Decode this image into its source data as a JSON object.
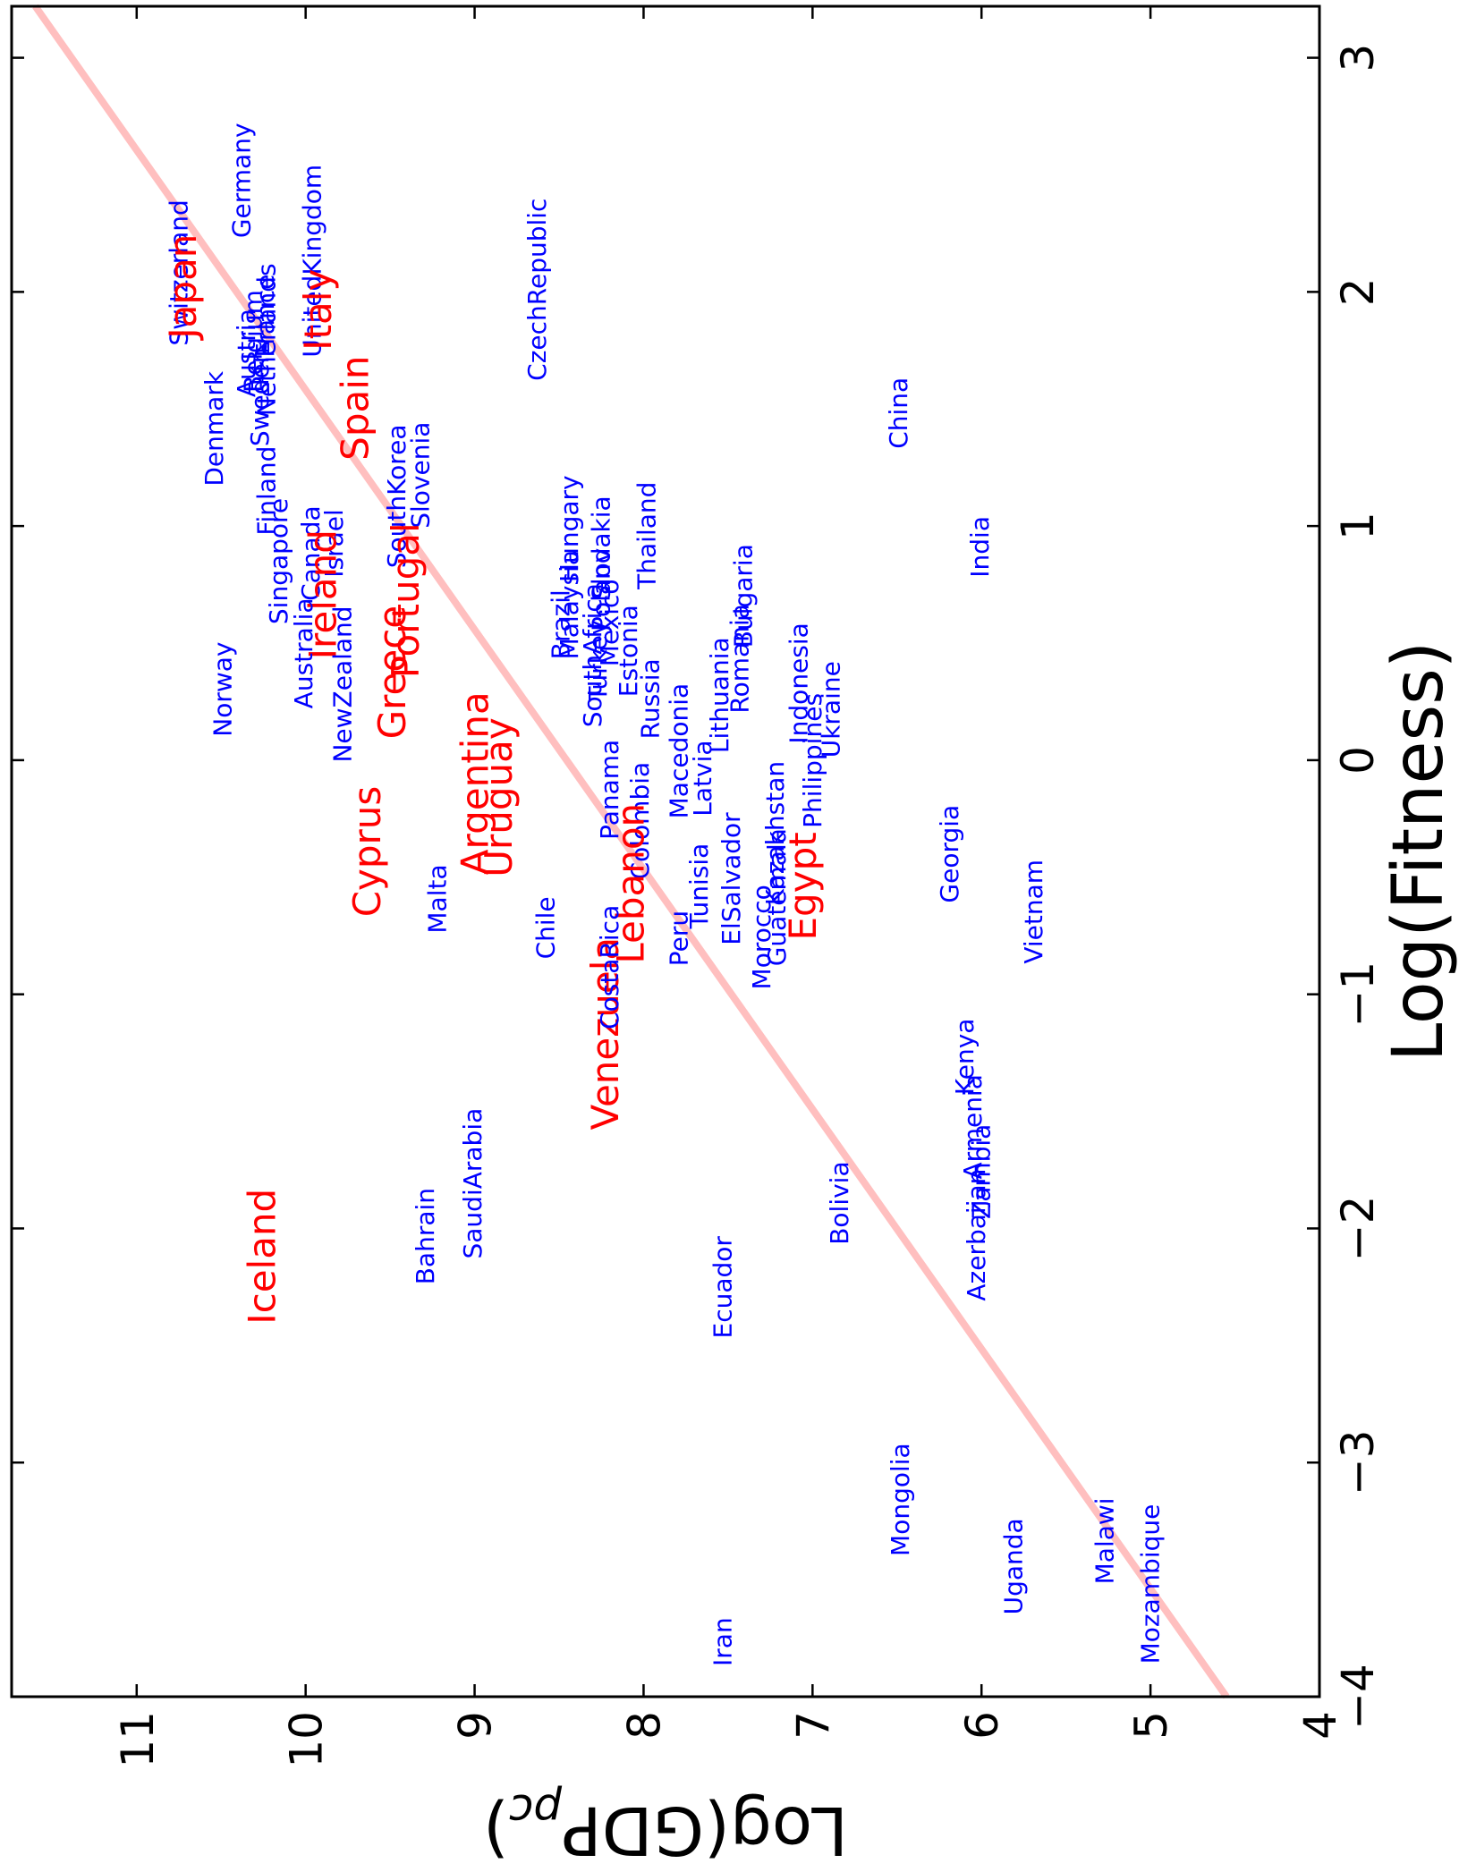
{
  "chart_data": {
    "type": "text-scatter",
    "xlabel": "Log(Fitness)",
    "ylabel": [
      "Log(GDP",
      "pc",
      ")"
    ],
    "xlim": [
      -4,
      3.22
    ],
    "ylim": [
      4,
      11.74
    ],
    "xticks": [
      {
        "value": -4,
        "label": "−4"
      },
      {
        "value": -3,
        "label": "−3"
      },
      {
        "value": -2,
        "label": "−2"
      },
      {
        "value": -1,
        "label": "−1"
      },
      0,
      1,
      2,
      3
    ],
    "yticks": [
      4,
      5,
      6,
      7,
      8,
      9,
      10,
      11
    ],
    "fit": {
      "x": [
        -4,
        3.22
      ],
      "y": [
        4.55,
        11.6
      ],
      "color": "#ffbfbf"
    },
    "points": [
      {
        "label": "Switzerland",
        "x": 1.77,
        "y": 10.7,
        "color": "#0000ff"
      },
      {
        "label": "Japan",
        "x": 1.8,
        "y": 10.65,
        "color": "#ff0000"
      },
      {
        "label": "Germany",
        "x": 2.23,
        "y": 10.33,
        "color": "#0000ff"
      },
      {
        "label": "UnitedKingdom",
        "x": 1.72,
        "y": 9.91,
        "color": "#0000ff"
      },
      {
        "label": "Italy",
        "x": 1.75,
        "y": 9.85,
        "color": "#ff0000"
      },
      {
        "label": "CzechRepublic",
        "x": 1.62,
        "y": 8.58,
        "color": "#0000ff"
      },
      {
        "label": "France",
        "x": 1.72,
        "y": 10.19,
        "color": "#0000ff"
      },
      {
        "label": "Netherlands",
        "x": 1.47,
        "y": 10.18,
        "color": "#0000ff"
      },
      {
        "label": "Belgium",
        "x": 1.57,
        "y": 10.26,
        "color": "#0000ff"
      },
      {
        "label": "Austria",
        "x": 1.55,
        "y": 10.3,
        "color": "#0000ff"
      },
      {
        "label": "Sweden",
        "x": 1.34,
        "y": 10.22,
        "color": "#0000ff"
      },
      {
        "label": "Denmark",
        "x": 1.17,
        "y": 10.49,
        "color": "#0000ff"
      },
      {
        "label": "Spain",
        "x": 1.28,
        "y": 9.63,
        "color": "#ff0000"
      },
      {
        "label": "Finland",
        "x": 0.96,
        "y": 10.18,
        "color": "#0000ff"
      },
      {
        "label": "Singapore",
        "x": 0.58,
        "y": 10.11,
        "color": "#0000ff"
      },
      {
        "label": "Canada",
        "x": 0.68,
        "y": 9.92,
        "color": "#0000ff"
      },
      {
        "label": "Israel",
        "x": 0.78,
        "y": 9.78,
        "color": "#0000ff"
      },
      {
        "label": "Ireland",
        "x": 0.43,
        "y": 9.82,
        "color": "#ff0000"
      },
      {
        "label": "SouthKorea",
        "x": 0.82,
        "y": 9.41,
        "color": "#0000ff"
      },
      {
        "label": "Slovenia",
        "x": 0.99,
        "y": 9.27,
        "color": "#0000ff"
      },
      {
        "label": "Portugal",
        "x": 0.35,
        "y": 9.33,
        "color": "#ff0000"
      },
      {
        "label": "Greece",
        "x": 0.09,
        "y": 9.41,
        "color": "#ff0000"
      },
      {
        "label": "Australia",
        "x": 0.22,
        "y": 9.96,
        "color": "#0000ff"
      },
      {
        "label": "NewZealand",
        "x": -0.01,
        "y": 9.73,
        "color": "#0000ff"
      },
      {
        "label": "Norway",
        "x": 0.1,
        "y": 10.44,
        "color": "#0000ff"
      },
      {
        "label": "Argentina",
        "x": -0.49,
        "y": 8.92,
        "color": "#ff0000"
      },
      {
        "label": "Uruguay",
        "x": -0.5,
        "y": 8.78,
        "color": "#ff0000"
      },
      {
        "label": "Cyprus",
        "x": -0.67,
        "y": 9.56,
        "color": "#ff0000"
      },
      {
        "label": "Malta",
        "x": -0.74,
        "y": 9.17,
        "color": "#0000ff"
      },
      {
        "label": "Chile",
        "x": -0.85,
        "y": 8.53,
        "color": "#0000ff"
      },
      {
        "label": "Hungary",
        "x": 0.76,
        "y": 8.39,
        "color": "#0000ff"
      },
      {
        "label": "Brazil",
        "x": 0.43,
        "y": 8.44,
        "color": "#0000ff"
      },
      {
        "label": "Malaysia",
        "x": 0.43,
        "y": 8.39,
        "color": "#0000ff"
      },
      {
        "label": "Poland",
        "x": 0.55,
        "y": 8.2,
        "color": "#0000ff"
      },
      {
        "label": "Slovakia",
        "x": 0.68,
        "y": 8.2,
        "color": "#0000ff"
      },
      {
        "label": "SouthAfrica",
        "x": 0.14,
        "y": 8.25,
        "color": "#0000ff"
      },
      {
        "label": "Turkey",
        "x": 0.25,
        "y": 8.22,
        "color": "#0000ff"
      },
      {
        "label": "Mexico",
        "x": 0.4,
        "y": 8.15,
        "color": "#0000ff"
      },
      {
        "label": "Thailand",
        "x": 0.73,
        "y": 7.93,
        "color": "#0000ff"
      },
      {
        "label": "Estonia",
        "x": 0.27,
        "y": 8.04,
        "color": "#0000ff"
      },
      {
        "label": "Russia",
        "x": 0.09,
        "y": 7.91,
        "color": "#0000ff"
      },
      {
        "label": "Panama",
        "x": -0.34,
        "y": 8.15,
        "color": "#0000ff"
      },
      {
        "label": "Colombia",
        "x": -0.51,
        "y": 7.97,
        "color": "#0000ff"
      },
      {
        "label": "Lebanon",
        "x": -0.87,
        "y": 8.0,
        "color": "#ff0000"
      },
      {
        "label": "Venezuela",
        "x": -1.58,
        "y": 8.15,
        "color": "#ff0000"
      },
      {
        "label": "CostaRica",
        "x": -1.15,
        "y": 8.15,
        "color": "#0000ff"
      },
      {
        "label": "Macedonia",
        "x": -0.25,
        "y": 7.74,
        "color": "#0000ff"
      },
      {
        "label": "Latvia",
        "x": -0.24,
        "y": 7.6,
        "color": "#0000ff"
      },
      {
        "label": "Lithuania",
        "x": 0.03,
        "y": 7.5,
        "color": "#0000ff"
      },
      {
        "label": "Romania",
        "x": 0.2,
        "y": 7.38,
        "color": "#0000ff"
      },
      {
        "label": "Bulgaria",
        "x": 0.48,
        "y": 7.36,
        "color": "#0000ff"
      },
      {
        "label": "Tunisia",
        "x": -0.72,
        "y": 7.62,
        "color": "#0000ff"
      },
      {
        "label": "Peru",
        "x": -0.88,
        "y": 7.74,
        "color": "#0000ff"
      },
      {
        "label": "ElSalvador",
        "x": -0.79,
        "y": 7.43,
        "color": "#0000ff"
      },
      {
        "label": "Morocco",
        "x": -0.98,
        "y": 7.25,
        "color": "#0000ff"
      },
      {
        "label": "Guatemala",
        "x": -0.88,
        "y": 7.16,
        "color": "#0000ff"
      },
      {
        "label": "Kazakhstan",
        "x": -0.62,
        "y": 7.17,
        "color": "#0000ff"
      },
      {
        "label": "Egypt",
        "x": -0.77,
        "y": 6.98,
        "color": "#ff0000"
      },
      {
        "label": "Indonesia",
        "x": 0.07,
        "y": 7.03,
        "color": "#0000ff"
      },
      {
        "label": "Philippines",
        "x": -0.29,
        "y": 6.95,
        "color": "#0000ff"
      },
      {
        "label": "Ukraine",
        "x": 0.01,
        "y": 6.84,
        "color": "#0000ff"
      },
      {
        "label": "China",
        "x": 1.33,
        "y": 6.44,
        "color": "#0000ff"
      },
      {
        "label": "India",
        "x": 0.78,
        "y": 5.96,
        "color": "#0000ff"
      },
      {
        "label": "Georgia",
        "x": -0.61,
        "y": 6.14,
        "color": "#0000ff"
      },
      {
        "label": "Vietnam",
        "x": -0.87,
        "y": 5.64,
        "color": "#0000ff"
      },
      {
        "label": "Kenya",
        "x": -1.43,
        "y": 6.05,
        "color": "#0000ff"
      },
      {
        "label": "Armenia",
        "x": -1.79,
        "y": 6.0,
        "color": "#0000ff"
      },
      {
        "label": "Zambia",
        "x": -1.96,
        "y": 5.95,
        "color": "#0000ff"
      },
      {
        "label": "Azerbaijan",
        "x": -2.31,
        "y": 5.98,
        "color": "#0000ff"
      },
      {
        "label": "Bolivia",
        "x": -2.07,
        "y": 6.79,
        "color": "#0000ff"
      },
      {
        "label": "Ecuador",
        "x": -2.47,
        "y": 7.48,
        "color": "#0000ff"
      },
      {
        "label": "Bahrain",
        "x": -2.24,
        "y": 9.24,
        "color": "#0000ff"
      },
      {
        "label": "SaudiArabia",
        "x": -2.13,
        "y": 8.96,
        "color": "#0000ff"
      },
      {
        "label": "Iceland",
        "x": -2.41,
        "y": 10.18,
        "color": "#ff0000"
      },
      {
        "label": "Mongolia",
        "x": -3.4,
        "y": 6.43,
        "color": "#0000ff"
      },
      {
        "label": "Uganda",
        "x": -3.65,
        "y": 5.76,
        "color": "#0000ff"
      },
      {
        "label": "Malawi",
        "x": -3.52,
        "y": 5.22,
        "color": "#0000ff"
      },
      {
        "label": "Mozambique",
        "x": -3.86,
        "y": 4.95,
        "color": "#0000ff"
      },
      {
        "label": "Iran",
        "x": -3.87,
        "y": 7.48,
        "color": "#0000ff"
      }
    ]
  }
}
